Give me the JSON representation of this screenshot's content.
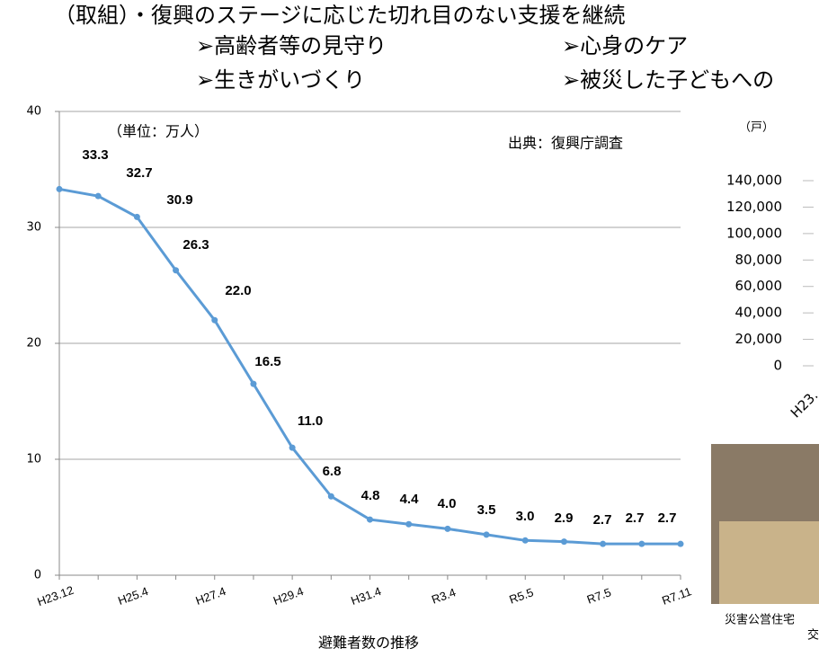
{
  "slide": {
    "heading": "（取組）・復興のステージに応じた切れ目のない支援を継続",
    "bullets": [
      "➢高齢者等の見守り",
      "➢心身のケア",
      "➢生きがいづくり",
      "➢被災した子どもへの"
    ],
    "photo_caption": [
      "災害公営住宅",
      "交"
    ]
  },
  "chart_data": [
    {
      "type": "line",
      "x_label": "避難者数の推移",
      "unit_note": "（単位：万人）",
      "source_note": "出典：復興庁調査",
      "categories": [
        "H23.12",
        null,
        "H25.4",
        null,
        "H27.4",
        null,
        "H29.4",
        null,
        "H31.4",
        null,
        "R3.4",
        null,
        "R5.5",
        null,
        "R7.5",
        null,
        "R7.11"
      ],
      "series": [
        {
          "name": "避難者数",
          "color": "#5b9bd5",
          "values": [
            33.3,
            32.7,
            30.9,
            26.3,
            22.0,
            16.5,
            11.0,
            6.8,
            4.8,
            4.4,
            4.0,
            3.5,
            3.0,
            2.9,
            2.7,
            2.7,
            2.7
          ],
          "value_labels": [
            "33.3",
            "32.7",
            "30.9",
            "26.3",
            "22.0",
            "16.5",
            "11.0",
            "6.8",
            "4.8",
            "4.4",
            "4.0",
            "3.5",
            "3.0",
            "2.9",
            "2.7",
            "2.7",
            "2.7"
          ]
        }
      ],
      "ylim": [
        0,
        40
      ],
      "yticks": [
        0,
        10,
        20,
        30,
        40
      ],
      "grid": true
    },
    {
      "type": "line",
      "unit_note": "（戸）",
      "categories": [
        "H23."
      ],
      "ylim": [
        0,
        140000
      ],
      "yticks": [
        0,
        {
          "value": 20000,
          "label": "20,000"
        },
        {
          "value": 40000,
          "label": "40,000"
        },
        {
          "value": 60000,
          "label": "60,000"
        },
        {
          "value": 80000,
          "label": "80,000"
        },
        {
          "value": 100000,
          "label": "100,000"
        },
        {
          "value": 120000,
          "label": "120,000"
        },
        {
          "value": 140000,
          "label": "140,000"
        }
      ]
    }
  ]
}
